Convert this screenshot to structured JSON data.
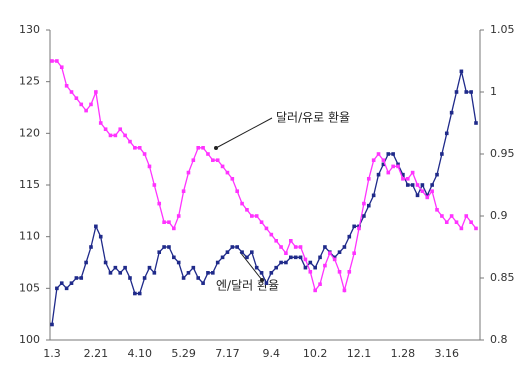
{
  "chart_data": {
    "type": "line",
    "categories": [
      "1.3",
      null,
      null,
      null,
      null,
      null,
      null,
      null,
      null,
      "2.21",
      null,
      null,
      null,
      null,
      null,
      null,
      null,
      null,
      "4.10",
      null,
      null,
      null,
      null,
      null,
      null,
      null,
      null,
      "5.29",
      null,
      null,
      null,
      null,
      null,
      null,
      null,
      null,
      "7.17",
      null,
      null,
      null,
      null,
      null,
      null,
      null,
      null,
      "9.4",
      null,
      null,
      null,
      null,
      null,
      null,
      null,
      null,
      "10.2",
      null,
      null,
      null,
      null,
      null,
      null,
      null,
      null,
      "12.1",
      null,
      null,
      null,
      null,
      null,
      null,
      null,
      null,
      "1.28",
      null,
      null,
      null,
      null,
      null,
      null,
      null,
      null,
      "3.16",
      null,
      null,
      null,
      null,
      null,
      null
    ],
    "series": [
      {
        "name": "엔/달러 환율",
        "color": "#1f2a8a",
        "values": [
          101.5,
          105,
          105.5,
          105,
          105.5,
          106,
          106,
          107.5,
          109,
          111,
          110,
          107.5,
          106.5,
          107,
          106.5,
          107,
          106,
          104.5,
          104.5,
          106,
          107,
          106.5,
          108.5,
          109,
          109,
          108,
          107.5,
          106,
          106.5,
          107,
          106,
          105.5,
          106.5,
          106.5,
          107.5,
          108,
          108.5,
          109,
          109,
          108.5,
          108,
          108.5,
          107,
          106.5,
          105.5,
          106.5,
          107,
          107.5,
          107.5,
          108,
          108,
          108,
          107,
          107.5,
          107,
          108,
          109,
          108.5,
          108,
          108.5,
          109,
          110,
          111,
          111,
          112,
          113,
          114,
          116,
          117,
          118,
          118,
          117,
          116,
          115,
          115,
          114,
          115,
          114,
          115,
          116,
          118,
          120,
          122,
          124,
          126,
          124,
          124,
          121
        ]
      },
      {
        "name": "달러/유로 환율",
        "color": "#ff33ff",
        "axis": "y2",
        "values": [
          1.025,
          1.025,
          1.02,
          1.005,
          1.0,
          0.995,
          0.99,
          0.985,
          0.99,
          1.0,
          0.975,
          0.97,
          0.965,
          0.965,
          0.97,
          0.965,
          0.96,
          0.955,
          0.955,
          0.95,
          0.94,
          0.925,
          0.91,
          0.895,
          0.895,
          0.89,
          0.9,
          0.92,
          0.935,
          0.945,
          0.955,
          0.955,
          0.95,
          0.945,
          0.945,
          0.94,
          0.935,
          0.93,
          0.92,
          0.91,
          0.905,
          0.9,
          0.9,
          0.895,
          0.89,
          0.885,
          0.88,
          0.875,
          0.87,
          0.88,
          0.875,
          0.875,
          0.865,
          0.855,
          0.84,
          0.845,
          0.86,
          0.87,
          0.865,
          0.855,
          0.84,
          0.855,
          0.87,
          0.89,
          0.91,
          0.93,
          0.945,
          0.95,
          0.945,
          0.935,
          0.94,
          0.94,
          0.93,
          0.93,
          0.935,
          0.925,
          0.92,
          0.915,
          0.92,
          0.905,
          0.9,
          0.895,
          0.9,
          0.895,
          0.89,
          0.9,
          0.895,
          0.89
        ]
      }
    ],
    "ylim": [
      100,
      130
    ],
    "yticks": [
      100,
      105,
      110,
      115,
      120,
      125,
      130
    ],
    "y2lim": [
      0.8,
      1.05
    ],
    "y2ticks": [
      0.8,
      0.85,
      0.9,
      0.95,
      1,
      1.05
    ],
    "annotations": [
      "달러/유로 환율",
      "엔/달러 환율"
    ]
  }
}
